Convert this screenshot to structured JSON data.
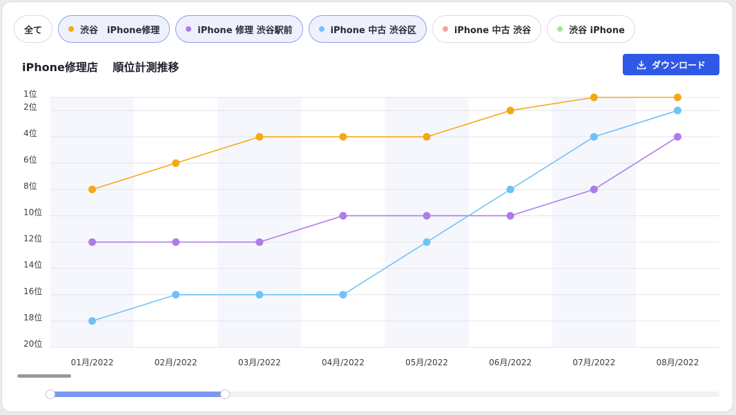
{
  "filters": {
    "all": "全て",
    "items": [
      {
        "label": "渋谷　iPhone修理",
        "color": "#f5a816",
        "active": true
      },
      {
        "label": "iPhone 修理 渋谷駅前",
        "color": "#b07be8",
        "active": true
      },
      {
        "label": "iPhone 中古 渋谷区",
        "color": "#6ec2f7",
        "active": true
      },
      {
        "label": "iPhone 中古 渋谷",
        "color": "#f5a3a3",
        "active": false
      },
      {
        "label": "渋谷 iPhone",
        "color": "#a8e39b",
        "active": false
      }
    ]
  },
  "header": {
    "title": "iPhone修理店　 順位計測推移",
    "download_label": "ダウンロード",
    "download_color": "#3058e6"
  },
  "chart_data": {
    "type": "line",
    "x": [
      "01月/2022",
      "02月/2022",
      "03月/2022",
      "04月/2022",
      "05月/2022",
      "06月/2022",
      "07月/2022",
      "08月/2022"
    ],
    "y_ticks": [
      {
        "value": 1,
        "label": "1位"
      },
      {
        "value": 2,
        "label": "2位"
      },
      {
        "value": 4,
        "label": "4位"
      },
      {
        "value": 6,
        "label": "6位"
      },
      {
        "value": 8,
        "label": "8位"
      },
      {
        "value": 10,
        "label": "10位"
      },
      {
        "value": 12,
        "label": "12位"
      },
      {
        "value": 14,
        "label": "14位"
      },
      {
        "value": 16,
        "label": "16位"
      },
      {
        "value": 18,
        "label": "18位"
      },
      {
        "value": 20,
        "label": "20位"
      }
    ],
    "ylim": [
      1,
      20
    ],
    "y_inverted": true,
    "grid": true,
    "series": [
      {
        "name": "渋谷　iPhone修理",
        "color": "#f5a816",
        "values": [
          8,
          6,
          4,
          4,
          4,
          2,
          1,
          1
        ]
      },
      {
        "name": "iPhone 修理 渋谷駅前",
        "color": "#b07be8",
        "values": [
          12,
          12,
          12,
          10,
          10,
          10,
          8,
          4
        ]
      },
      {
        "name": "iPhone 中古 渋谷区",
        "color": "#6ec2f7",
        "values": [
          18,
          16,
          16,
          16,
          12,
          8,
          4,
          2
        ]
      }
    ]
  },
  "range_slider": {
    "start": 0.0,
    "end": 0.26
  }
}
